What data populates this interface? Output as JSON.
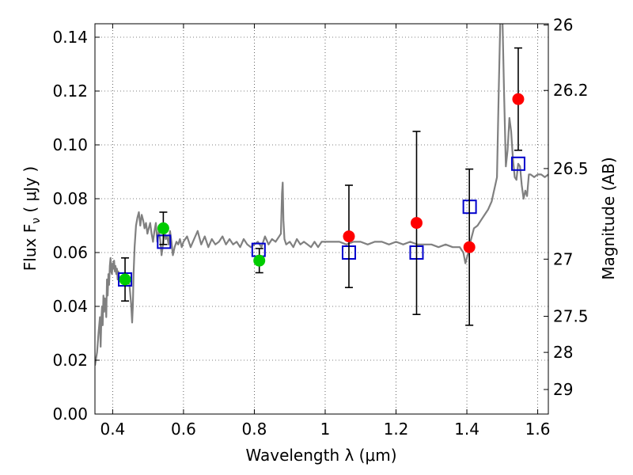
{
  "chart_data": {
    "type": "scatter",
    "xlabel": "Wavelength  λ (μm)",
    "ylabel": "Flux  F",
    "ylabel_sub": "ν",
    "ylabel_unit": "  ( μJy )",
    "y2label": "Magnitude (AB)",
    "xlim": [
      0.35,
      1.63
    ],
    "ylim": [
      0.0,
      0.145
    ],
    "grid": true,
    "x_ticks": [
      {
        "value": 0.4,
        "label": "0.4"
      },
      {
        "value": 0.6,
        "label": "0.6"
      },
      {
        "value": 0.8,
        "label": "0.8"
      },
      {
        "value": 1.0,
        "label": "1"
      },
      {
        "value": 1.2,
        "label": "1.2"
      },
      {
        "value": 1.4,
        "label": "1.4"
      },
      {
        "value": 1.6,
        "label": "1.6"
      }
    ],
    "y_ticks": [
      {
        "value": 0.0,
        "label": "0.00"
      },
      {
        "value": 0.02,
        "label": "0.02"
      },
      {
        "value": 0.04,
        "label": "0.04"
      },
      {
        "value": 0.06,
        "label": "0.06"
      },
      {
        "value": 0.08,
        "label": "0.08"
      },
      {
        "value": 0.1,
        "label": "0.10"
      },
      {
        "value": 0.12,
        "label": "0.12"
      },
      {
        "value": 0.14,
        "label": "0.14"
      }
    ],
    "y2_ticks": [
      {
        "mag": 26.0,
        "label": "26"
      },
      {
        "mag": 26.2,
        "label": "26.2"
      },
      {
        "mag": 26.5,
        "label": "26.5"
      },
      {
        "mag": 27.0,
        "label": "27"
      },
      {
        "mag": 27.5,
        "label": "27.5"
      },
      {
        "mag": 28.0,
        "label": "28"
      },
      {
        "mag": 29.0,
        "label": "29"
      }
    ],
    "model_spectrum": {
      "color": "#808080",
      "x": [
        0.35,
        0.356,
        0.36,
        0.364,
        0.366,
        0.368,
        0.37,
        0.372,
        0.374,
        0.376,
        0.378,
        0.38,
        0.382,
        0.384,
        0.386,
        0.388,
        0.39,
        0.392,
        0.394,
        0.396,
        0.398,
        0.4,
        0.402,
        0.404,
        0.406,
        0.408,
        0.41,
        0.412,
        0.414,
        0.416,
        0.418,
        0.42,
        0.424,
        0.428,
        0.432,
        0.436,
        0.44,
        0.444,
        0.448,
        0.452,
        0.455,
        0.457,
        0.459,
        0.462,
        0.466,
        0.47,
        0.474,
        0.478,
        0.482,
        0.486,
        0.49,
        0.494,
        0.498,
        0.502,
        0.506,
        0.51,
        0.514,
        0.518,
        0.522,
        0.526,
        0.53,
        0.534,
        0.538,
        0.542,
        0.546,
        0.55,
        0.554,
        0.558,
        0.562,
        0.566,
        0.57,
        0.575,
        0.58,
        0.585,
        0.59,
        0.595,
        0.6,
        0.61,
        0.62,
        0.63,
        0.64,
        0.65,
        0.66,
        0.67,
        0.68,
        0.69,
        0.7,
        0.71,
        0.72,
        0.73,
        0.74,
        0.75,
        0.76,
        0.77,
        0.78,
        0.79,
        0.8,
        0.81,
        0.82,
        0.83,
        0.84,
        0.85,
        0.86,
        0.87,
        0.875,
        0.878,
        0.88,
        0.882,
        0.885,
        0.89,
        0.9,
        0.91,
        0.92,
        0.93,
        0.94,
        0.95,
        0.96,
        0.97,
        0.98,
        0.99,
        1.0,
        1.02,
        1.04,
        1.06,
        1.08,
        1.1,
        1.12,
        1.14,
        1.16,
        1.18,
        1.2,
        1.22,
        1.24,
        1.26,
        1.28,
        1.3,
        1.32,
        1.34,
        1.36,
        1.38,
        1.385,
        1.39,
        1.393,
        1.396,
        1.4,
        1.404,
        1.408,
        1.412,
        1.416,
        1.42,
        1.43,
        1.44,
        1.45,
        1.46,
        1.47,
        1.475,
        1.48,
        1.485,
        1.49,
        1.495,
        1.5,
        1.505,
        1.51,
        1.515,
        1.52,
        1.525,
        1.53,
        1.535,
        1.54,
        1.545,
        1.55,
        1.555,
        1.56,
        1.565,
        1.57,
        1.575,
        1.58,
        1.59,
        1.6,
        1.61,
        1.62,
        1.63
      ],
      "y": [
        0.018,
        0.023,
        0.03,
        0.036,
        0.025,
        0.035,
        0.04,
        0.033,
        0.044,
        0.038,
        0.043,
        0.042,
        0.036,
        0.05,
        0.044,
        0.052,
        0.048,
        0.055,
        0.058,
        0.053,
        0.052,
        0.056,
        0.054,
        0.057,
        0.053,
        0.055,
        0.052,
        0.054,
        0.05,
        0.053,
        0.051,
        0.05,
        0.051,
        0.05,
        0.052,
        0.05,
        0.049,
        0.051,
        0.047,
        0.041,
        0.034,
        0.04,
        0.052,
        0.062,
        0.07,
        0.073,
        0.075,
        0.07,
        0.074,
        0.072,
        0.069,
        0.071,
        0.067,
        0.069,
        0.071,
        0.067,
        0.064,
        0.068,
        0.071,
        0.064,
        0.068,
        0.065,
        0.059,
        0.063,
        0.068,
        0.065,
        0.066,
        0.063,
        0.068,
        0.064,
        0.059,
        0.062,
        0.064,
        0.063,
        0.065,
        0.062,
        0.064,
        0.066,
        0.062,
        0.065,
        0.068,
        0.063,
        0.066,
        0.062,
        0.065,
        0.063,
        0.064,
        0.066,
        0.063,
        0.065,
        0.063,
        0.064,
        0.062,
        0.065,
        0.063,
        0.062,
        0.063,
        0.064,
        0.062,
        0.066,
        0.063,
        0.065,
        0.064,
        0.066,
        0.067,
        0.082,
        0.086,
        0.072,
        0.065,
        0.063,
        0.064,
        0.062,
        0.065,
        0.063,
        0.064,
        0.063,
        0.062,
        0.064,
        0.062,
        0.064,
        0.064,
        0.064,
        0.064,
        0.063,
        0.064,
        0.064,
        0.063,
        0.064,
        0.064,
        0.063,
        0.064,
        0.063,
        0.064,
        0.063,
        0.063,
        0.063,
        0.062,
        0.063,
        0.062,
        0.062,
        0.061,
        0.06,
        0.058,
        0.056,
        0.058,
        0.06,
        0.063,
        0.065,
        0.067,
        0.069,
        0.07,
        0.072,
        0.074,
        0.076,
        0.079,
        0.082,
        0.085,
        0.088,
        0.12,
        0.15,
        0.15,
        0.12,
        0.092,
        0.098,
        0.11,
        0.105,
        0.095,
        0.088,
        0.087,
        0.093,
        0.092,
        0.085,
        0.08,
        0.083,
        0.081,
        0.089,
        0.089,
        0.088,
        0.089,
        0.089,
        0.088,
        0.089
      ]
    },
    "series": [
      {
        "marker": "open-square",
        "color": "#0000cc",
        "points": [
          {
            "x": 0.435,
            "y": 0.05
          },
          {
            "x": 0.545,
            "y": 0.064
          },
          {
            "x": 0.812,
            "y": 0.061
          },
          {
            "x": 1.067,
            "y": 0.06
          },
          {
            "x": 1.258,
            "y": 0.06
          },
          {
            "x": 1.408,
            "y": 0.077
          },
          {
            "x": 1.545,
            "y": 0.093
          }
        ]
      },
      {
        "marker": "filled-circle",
        "color": "#00cc00",
        "points": [
          {
            "x": 0.435,
            "y": 0.05,
            "err": 0.008
          },
          {
            "x": 0.543,
            "y": 0.069,
            "err": 0.006
          },
          {
            "x": 0.814,
            "y": 0.057,
            "err": 0.0045
          }
        ]
      },
      {
        "marker": "filled-circle",
        "color": "#ff0000",
        "points": [
          {
            "x": 1.067,
            "y": 0.066,
            "err": 0.019
          },
          {
            "x": 1.258,
            "y": 0.071,
            "err": 0.034
          },
          {
            "x": 1.407,
            "y": 0.062,
            "err": 0.029
          },
          {
            "x": 1.545,
            "y": 0.117,
            "err": 0.019
          }
        ]
      }
    ]
  }
}
